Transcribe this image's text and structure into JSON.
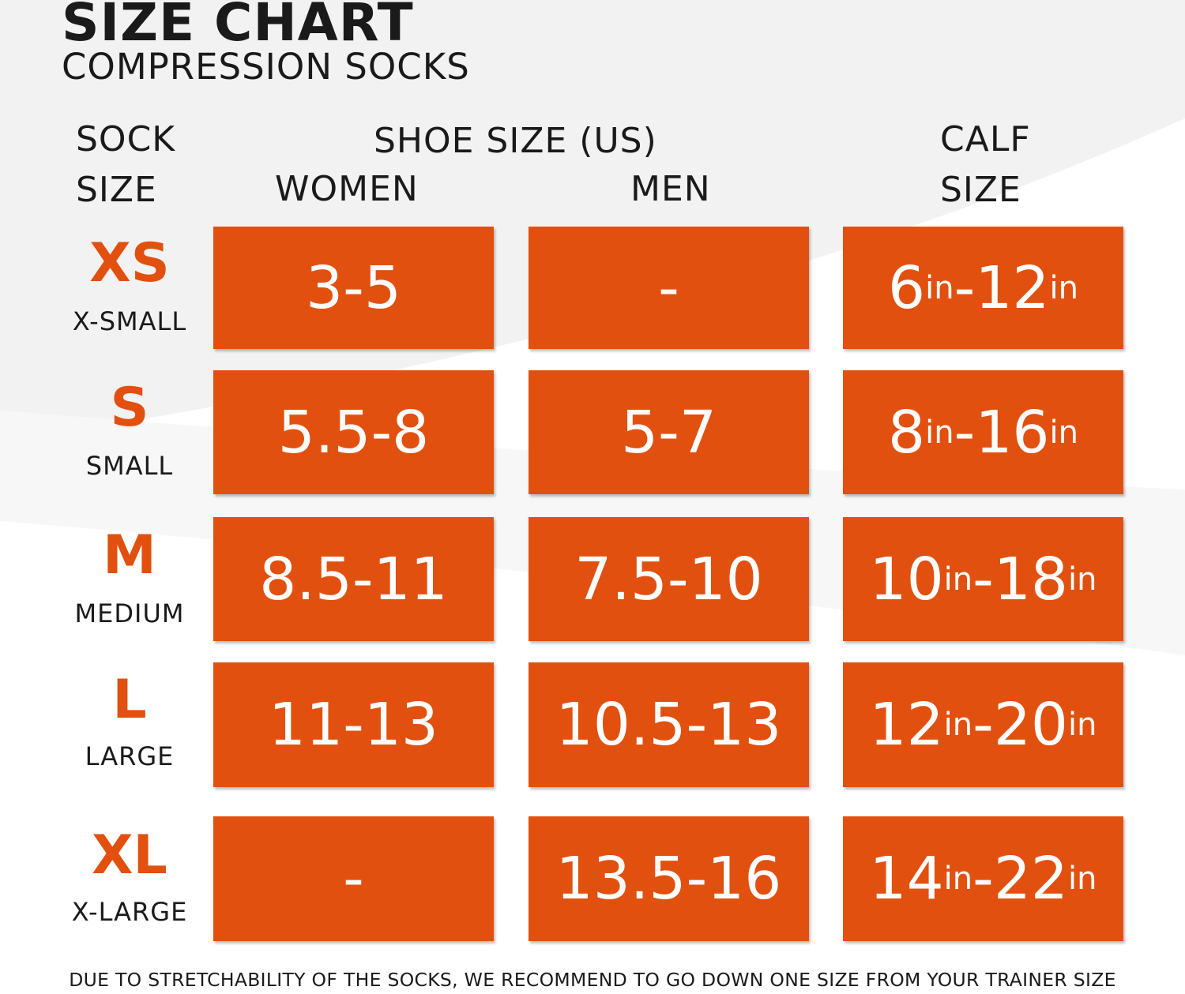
{
  "header": {
    "title": "SIZE CHART",
    "subtitle": "COMPRESSION SOCKS"
  },
  "columns": {
    "sock_size": [
      "SOCK",
      "SIZE"
    ],
    "shoe_size": "SHOE SIZE (US)",
    "women": "WOMEN",
    "men": "MEN",
    "calf_size": [
      "CALF",
      "SIZE"
    ]
  },
  "rows": [
    {
      "code": "XS",
      "name": "X-SMALL",
      "women": "3-5",
      "men": "-",
      "calf_min": "6",
      "calf_max": "12",
      "unit": "in"
    },
    {
      "code": "S",
      "name": "SMALL",
      "women": "5.5-8",
      "men": "5-7",
      "calf_min": "8",
      "calf_max": "16",
      "unit": "in"
    },
    {
      "code": "M",
      "name": "MEDIUM",
      "women": "8.5-11",
      "men": "7.5-10",
      "calf_min": "10",
      "calf_max": "18",
      "unit": "in"
    },
    {
      "code": "L",
      "name": "LARGE",
      "women": "11-13",
      "men": "10.5-13",
      "calf_min": "12",
      "calf_max": "20",
      "unit": "in"
    },
    {
      "code": "XL",
      "name": "X-LARGE",
      "women": "-",
      "men": "13.5-16",
      "calf_min": "14",
      "calf_max": "22",
      "unit": "in"
    }
  ],
  "footnote": "DUE TO STRETCHABILITY OF THE SOCKS, WE RECOMMEND TO GO DOWN ONE SIZE FROM YOUR TRAINER SIZE",
  "colors": {
    "accent": "#e2500f",
    "cell_text": "#ffffff",
    "text": "#1a1a1a"
  }
}
